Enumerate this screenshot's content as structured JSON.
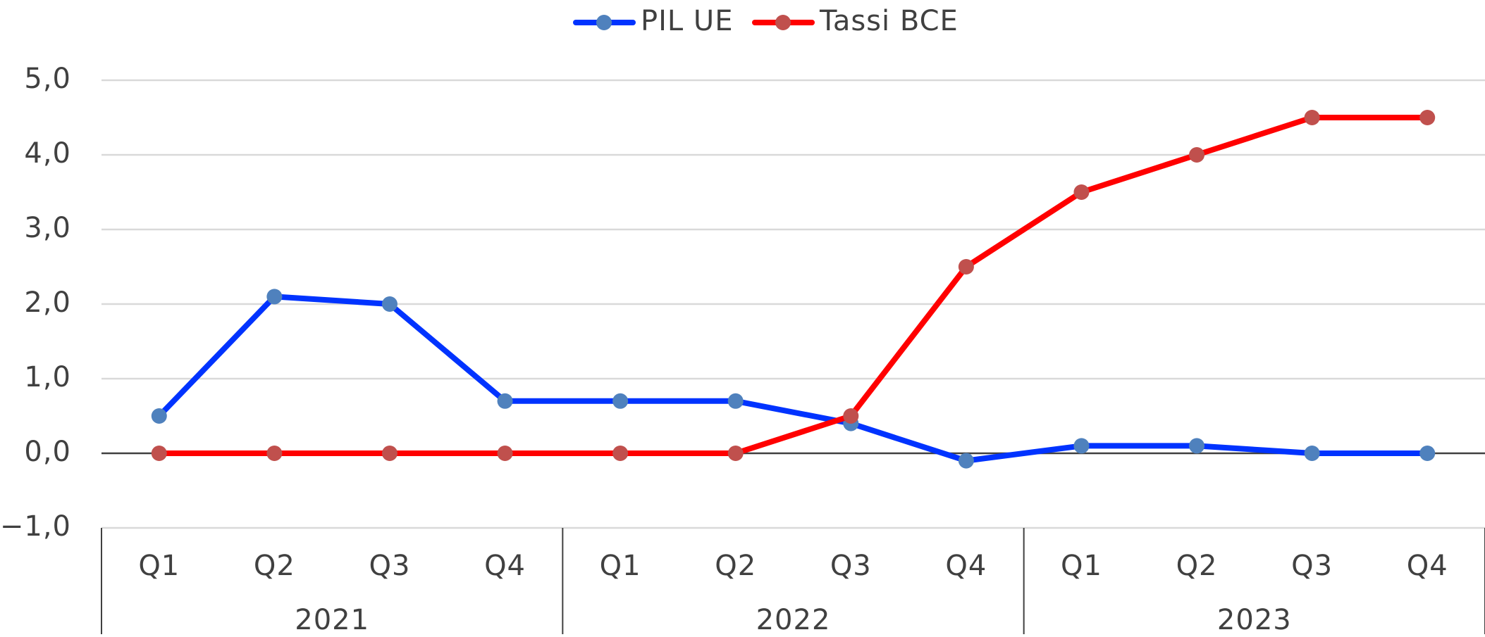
{
  "chart_data": {
    "type": "line",
    "categories": [
      "Q1",
      "Q2",
      "Q3",
      "Q4",
      "Q1",
      "Q2",
      "Q3",
      "Q4",
      "Q1",
      "Q2",
      "Q3",
      "Q4"
    ],
    "category_groups": [
      "2021",
      "2022",
      "2023"
    ],
    "series": [
      {
        "name": "PIL UE",
        "color": "#0033ff",
        "marker_color": "#4f81bd",
        "values": [
          0.5,
          2.1,
          2.0,
          0.7,
          0.7,
          0.7,
          0.4,
          -0.1,
          0.1,
          0.1,
          0.0,
          0.0
        ]
      },
      {
        "name": "Tassi BCE",
        "color": "#ff0000",
        "marker_color": "#c0504d",
        "values": [
          0,
          0,
          0,
          0,
          0,
          0,
          0.5,
          2.5,
          3.5,
          4.0,
          4.5,
          4.5
        ]
      }
    ],
    "ylim": [
      -1,
      5
    ],
    "yticks": [
      {
        "value": -1,
        "label": "−1,0"
      },
      {
        "value": 0,
        "label": "0,0"
      },
      {
        "value": 1,
        "label": "1,0"
      },
      {
        "value": 2,
        "label": "2,0"
      },
      {
        "value": 3,
        "label": "3,0"
      },
      {
        "value": 4,
        "label": "4,0"
      },
      {
        "value": 5,
        "label": "5,0"
      }
    ],
    "grid": true,
    "legend": "top"
  }
}
